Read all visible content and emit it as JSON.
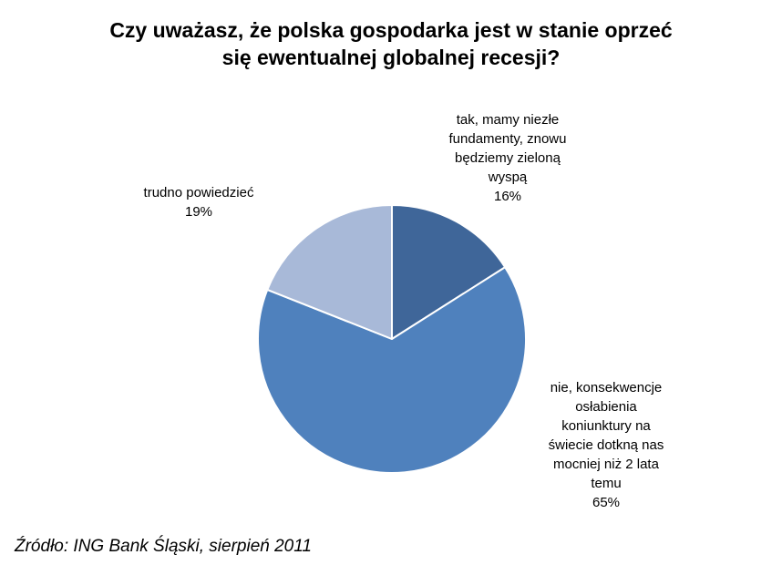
{
  "chart_data": {
    "type": "pie",
    "title_lines": [
      "Czy uważasz, że polska gospodarka jest w stanie oprzeć",
      "się ewentualnej globalnej recesji?"
    ],
    "slices": [
      {
        "label_lines": [
          "tak, mamy niezłe",
          "fundamenty, znowu",
          "będziemy zieloną",
          "wyspą"
        ],
        "value": 16,
        "value_text": "16%",
        "color": "#3f6699"
      },
      {
        "label_lines": [
          "nie, konsekwencje",
          "osłabienia",
          "koniunktury na",
          "świecie dotkną nas",
          "mocniej niż 2 lata",
          "temu"
        ],
        "value": 65,
        "value_text": "65%",
        "color": "#4f81bd"
      },
      {
        "label_lines": [
          "trudno powiedzieć"
        ],
        "value": 19,
        "value_text": "19%",
        "color": "#a8b9d8"
      }
    ],
    "start_angle": "12 o'clock",
    "direction": "clockwise",
    "legend": "none"
  },
  "source": "Źródło: ING Bank Śląski, sierpień 2011"
}
